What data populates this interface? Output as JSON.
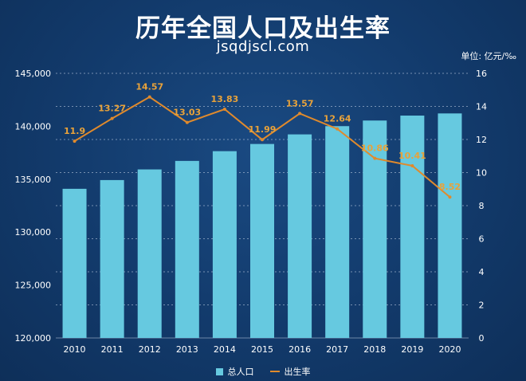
{
  "title": "历年全国人口及出生率",
  "watermark": "jsqdjscl.com",
  "unit_label": "单位: 亿元/‰",
  "colors": {
    "bar": "#66c9e0",
    "line": "#e08a2c",
    "line_label": "#e8a23a",
    "axis_text": "#ffffff",
    "grid": "#c8d6e8"
  },
  "chart_data": {
    "type": "bar",
    "categories": [
      "2010",
      "2011",
      "2012",
      "2013",
      "2014",
      "2015",
      "2016",
      "2017",
      "2018",
      "2019",
      "2020"
    ],
    "series": [
      {
        "name": "总人口",
        "type": "bar",
        "axis": "left",
        "values": [
          134091,
          134916,
          135922,
          136726,
          137646,
          138326,
          139232,
          140011,
          140541,
          141008,
          141212
        ]
      },
      {
        "name": "出生率",
        "type": "line",
        "axis": "right",
        "values": [
          11.9,
          13.27,
          14.57,
          13.03,
          13.83,
          11.99,
          13.57,
          12.64,
          10.86,
          10.41,
          8.52
        ],
        "labels": [
          "11.9",
          "13.27",
          "14.57",
          "13.03",
          "13.83",
          "11.99",
          "13.57",
          "12.64",
          "10.86",
          "10.41",
          "8.52"
        ]
      }
    ],
    "y_left": {
      "min": 120000,
      "max": 145000,
      "ticks": [
        120000,
        125000,
        130000,
        135000,
        140000,
        145000
      ],
      "tick_labels": [
        "120,000",
        "125,000",
        "130,000",
        "135,000",
        "140,000",
        "145,000"
      ]
    },
    "y_right": {
      "min": 0,
      "max": 16,
      "ticks": [
        0,
        2,
        4,
        6,
        8,
        10,
        12,
        14,
        16
      ],
      "tick_labels": [
        "0",
        "2",
        "4",
        "6",
        "8",
        "10",
        "12",
        "14",
        "16"
      ]
    },
    "grid": true,
    "legend_position": "bottom-center"
  }
}
